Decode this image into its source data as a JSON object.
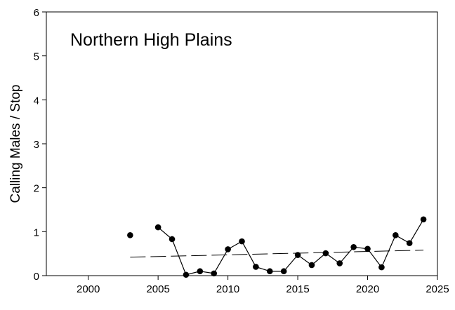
{
  "chart_data": {
    "type": "line",
    "title": "Northern High Plains",
    "xlabel": "",
    "ylabel": "Calling Males / Stop",
    "xlim": [
      1997,
      2025
    ],
    "ylim": [
      0,
      6
    ],
    "x_ticks": [
      2000,
      2005,
      2010,
      2015,
      2020,
      2025
    ],
    "y_ticks": [
      0,
      1,
      2,
      3,
      4,
      5,
      6
    ],
    "grid": false,
    "series": [
      {
        "segments": [
          [
            {
              "x": 2003,
              "y": 0.92
            }
          ],
          [
            {
              "x": 2005,
              "y": 1.1
            },
            {
              "x": 2006,
              "y": 0.83
            },
            {
              "x": 2007,
              "y": 0.02
            },
            {
              "x": 2008,
              "y": 0.1
            },
            {
              "x": 2009,
              "y": 0.05
            },
            {
              "x": 2010,
              "y": 0.6
            },
            {
              "x": 2011,
              "y": 0.78
            },
            {
              "x": 2012,
              "y": 0.2
            },
            {
              "x": 2013,
              "y": 0.1
            },
            {
              "x": 2014,
              "y": 0.1
            },
            {
              "x": 2015,
              "y": 0.47
            },
            {
              "x": 2016,
              "y": 0.24
            },
            {
              "x": 2017,
              "y": 0.51
            },
            {
              "x": 2018,
              "y": 0.28
            },
            {
              "x": 2019,
              "y": 0.65
            },
            {
              "x": 2020,
              "y": 0.61
            },
            {
              "x": 2021,
              "y": 0.19
            },
            {
              "x": 2022,
              "y": 0.92
            },
            {
              "x": 2023,
              "y": 0.74
            },
            {
              "x": 2024,
              "y": 1.28
            }
          ]
        ],
        "color": "#000000"
      }
    ],
    "trend_line": {
      "x": [
        2003,
        2024
      ],
      "y": [
        0.42,
        0.58
      ],
      "style": "dashed",
      "color": "#000000"
    }
  }
}
